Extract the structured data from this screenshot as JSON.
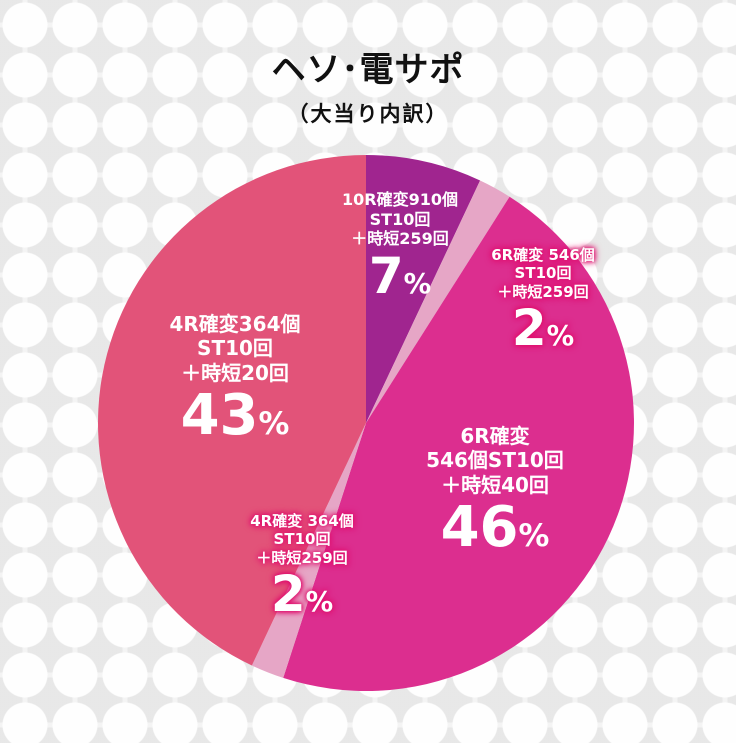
{
  "header": {
    "title": "ヘソ･電サポ",
    "subtitle": "（大当り内訳）"
  },
  "chart_data": {
    "type": "pie",
    "title": "ヘソ･電サポ",
    "subtitle": "（大当り内訳）",
    "start": "12 o'clock, clockwise",
    "slices": [
      {
        "lines": [
          "10R確変910個",
          "ST10回",
          "＋時短259回"
        ],
        "value": 7,
        "pct": "7",
        "color": "#a0258f"
      },
      {
        "lines": [
          "6R確変 546個",
          "ST10回",
          "＋時短259回"
        ],
        "value": 2,
        "pct": "2",
        "color": "#e6a6c6"
      },
      {
        "lines": [
          "6R確変",
          "546個ST10回",
          "＋時短40回"
        ],
        "value": 46,
        "pct": "46",
        "color": "#dc2e8f"
      },
      {
        "lines": [
          "4R確変 364個",
          "ST10回",
          "＋時短259回"
        ],
        "value": 2,
        "pct": "2",
        "color": "#e6a6c6"
      },
      {
        "lines": [
          "4R確変364個",
          "ST10回",
          "＋時短20回"
        ],
        "value": 43,
        "pct": "43",
        "color": "#e25379"
      }
    ],
    "unit": "%"
  }
}
